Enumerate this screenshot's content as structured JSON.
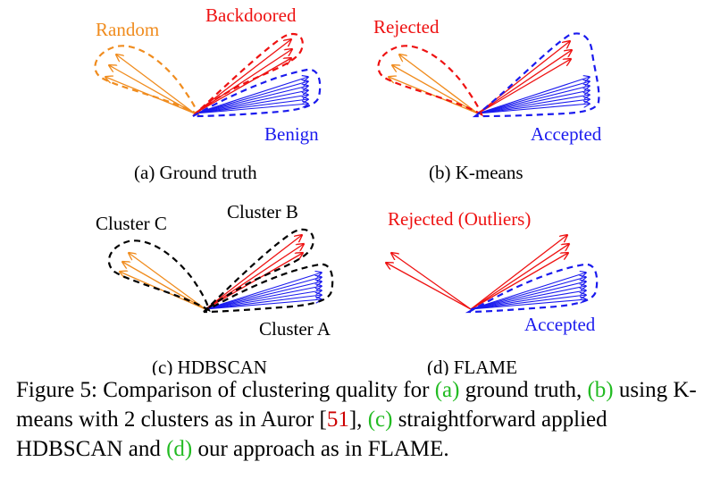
{
  "colors": {
    "random": "#f08c1e",
    "backdoored": "#ee1111",
    "benign": "#1a1aee",
    "black": "#000000",
    "ref_green": "#22bb22",
    "ref_red": "#cc0000"
  },
  "panels": {
    "a": {
      "subcaption": "(a) Ground truth",
      "label_random": "Random",
      "label_backdoored": "Backdoored",
      "label_benign": "Benign"
    },
    "b": {
      "subcaption": "(b) K-means",
      "label_rejected": "Rejected",
      "label_accepted": "Accepted"
    },
    "c": {
      "subcaption": "(c) HDBSCAN",
      "label_cluster_a": "Cluster A",
      "label_cluster_b": "Cluster B",
      "label_cluster_c": "Cluster C"
    },
    "d": {
      "subcaption": "(d) FLAME",
      "label_outliers": "Rejected (Outliers)",
      "label_accepted": "Accepted"
    }
  },
  "caption": {
    "prefix": "Figure 5: Comparison of clustering quality for ",
    "ref_a": "(a)",
    "t1": " ground truth, ",
    "ref_b": "(b)",
    "t2": " using K-means with 2 clusters as in Auror [",
    "cite": "51",
    "t3": "], ",
    "ref_c": "(c)",
    "t4": " straightforward applied HDBSCAN and ",
    "ref_d": "(d)",
    "t5": " our approach as in FLAME."
  }
}
